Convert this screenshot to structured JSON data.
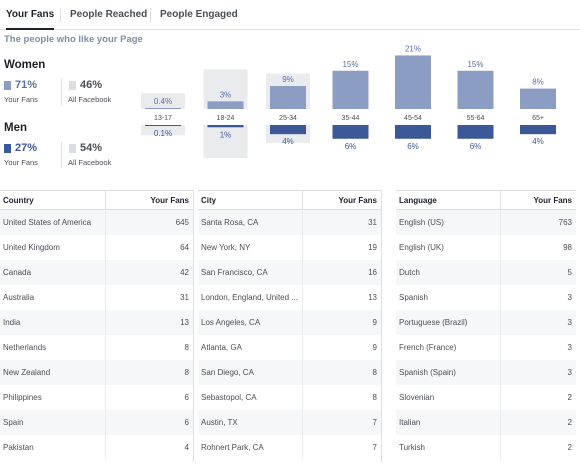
{
  "tabs": [
    {
      "label": "Your Fans",
      "active": true
    },
    {
      "label": "People Reached",
      "active": false
    },
    {
      "label": "People Engaged",
      "active": false
    }
  ],
  "subtitle": "The people who like your Page",
  "gender": {
    "women": {
      "title": "Women",
      "fans_pct": "71%",
      "fans_label": "Your Fans",
      "all_pct": "46%",
      "all_label": "All Facebook"
    },
    "men": {
      "title": "Men",
      "fans_pct": "27%",
      "fans_label": "Your Fans",
      "all_pct": "54%",
      "all_label": "All Facebook"
    }
  },
  "colors": {
    "women": "#8b9dc3",
    "men": "#3b5998",
    "all_facebook": "#e9ebee",
    "pct_women": "#5b6fa6",
    "pct_men": "#3b5998"
  },
  "chart_data": {
    "type": "bar",
    "categories": [
      "13-17",
      "18-24",
      "25-34",
      "35-44",
      "45-54",
      "55-64",
      "65+"
    ],
    "series": [
      {
        "name": "Women",
        "values": [
          0.4,
          3,
          9,
          15,
          21,
          15,
          8
        ],
        "labels": [
          "0.4%",
          "3%",
          "9%",
          "15%",
          "21%",
          "15%",
          "8%"
        ]
      },
      {
        "name": "Men",
        "values": [
          0.1,
          1,
          4,
          6,
          6,
          6,
          4
        ],
        "labels": [
          "0.1%",
          "1%",
          "4%",
          "6%",
          "6%",
          "6%",
          "4%"
        ]
      }
    ],
    "all_facebook_women": [
      4,
      10,
      9,
      0,
      0,
      0,
      0
    ],
    "all_facebook_men": [
      4,
      13,
      7,
      0,
      0,
      0,
      0
    ]
  },
  "tables": [
    {
      "header": [
        "Country",
        "Your Fans"
      ],
      "rows": [
        [
          "United States of America",
          "645"
        ],
        [
          "United Kingdom",
          "64"
        ],
        [
          "Canada",
          "42"
        ],
        [
          "Australia",
          "31"
        ],
        [
          "India",
          "13"
        ],
        [
          "Netherlands",
          "8"
        ],
        [
          "New Zealand",
          "8"
        ],
        [
          "Philippines",
          "6"
        ],
        [
          "Spain",
          "6"
        ],
        [
          "Pakistan",
          "4"
        ]
      ]
    },
    {
      "header": [
        "City",
        "Your Fans"
      ],
      "rows": [
        [
          "Santa Rosa, CA",
          "31"
        ],
        [
          "New York, NY",
          "19"
        ],
        [
          "San Francisco, CA",
          "16"
        ],
        [
          "London, England, United ...",
          "13"
        ],
        [
          "Los Angeles, CA",
          "9"
        ],
        [
          "Atlanta, GA",
          "9"
        ],
        [
          "San Diego, CA",
          "8"
        ],
        [
          "Sebastopol, CA",
          "8"
        ],
        [
          "Austin, TX",
          "7"
        ],
        [
          "Rohnert Park, CA",
          "7"
        ]
      ]
    },
    {
      "header": [
        "Language",
        "Your Fans"
      ],
      "rows": [
        [
          "English (US)",
          "763"
        ],
        [
          "English (UK)",
          "98"
        ],
        [
          "Dutch",
          "5"
        ],
        [
          "Spanish",
          "3"
        ],
        [
          "Portuguese (Brazil)",
          "3"
        ],
        [
          "French (France)",
          "3"
        ],
        [
          "Spanish (Spain)",
          "3"
        ],
        [
          "Slovenian",
          "2"
        ],
        [
          "Italian",
          "2"
        ],
        [
          "Turkish",
          "2"
        ]
      ]
    }
  ]
}
